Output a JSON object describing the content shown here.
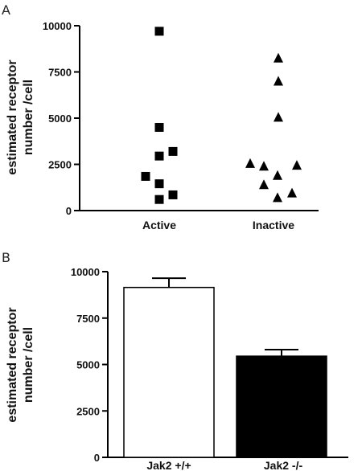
{
  "chart_data": [
    {
      "panel": "A",
      "type": "scatter",
      "ylabel": [
        "estimated receptor",
        "number /cell"
      ],
      "categories": [
        "Active",
        "Inactive"
      ],
      "ylim": [
        0,
        10000
      ],
      "yticks": [
        "0",
        "2500",
        "5000",
        "7500",
        "10000"
      ],
      "series": [
        {
          "category": "Active",
          "marker": "square",
          "values": [
            9700,
            4500,
            3200,
            2950,
            1850,
            1450,
            850,
            600
          ]
        },
        {
          "category": "Inactive",
          "marker": "triangle",
          "values": [
            8250,
            7000,
            5050,
            2550,
            2450,
            2400,
            1900,
            1400,
            950,
            700
          ]
        }
      ]
    },
    {
      "panel": "B",
      "type": "bar",
      "ylabel": [
        "estimated receptor",
        "number /cell"
      ],
      "categories": [
        "Jak2 +/+",
        "Jak2 -/-"
      ],
      "values": [
        9150,
        5450
      ],
      "errors": [
        500,
        350
      ],
      "fills": [
        "#ffffff",
        "#000000"
      ],
      "ylim": [
        0,
        10000
      ],
      "yticks": [
        "0",
        "2500",
        "5000",
        "7500",
        "10000"
      ]
    }
  ]
}
